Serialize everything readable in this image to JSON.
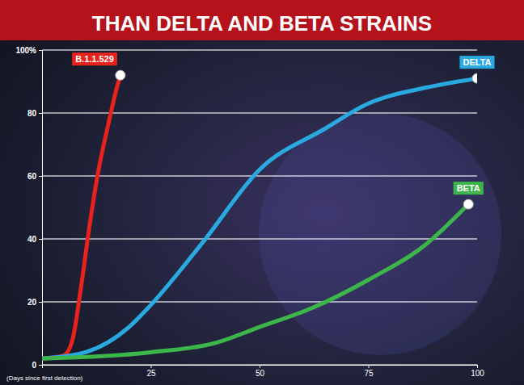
{
  "chart_data": {
    "type": "line",
    "title": "THAN DELTA AND BETA STRAINS",
    "x_label": "(Days since first detection)",
    "xlim": [
      0,
      100
    ],
    "xticks": [
      25,
      50,
      75,
      100
    ],
    "ylim": [
      0,
      100
    ],
    "yticks": [
      0,
      20,
      40,
      60,
      80,
      {
        "value": 100,
        "label": "100%"
      }
    ],
    "grid": true,
    "series": [
      {
        "name": "B.1.1.529",
        "color": "#e8231d",
        "x": [
          0,
          5,
          7,
          9,
          11,
          13,
          15,
          17,
          18
        ],
        "values": [
          2,
          3,
          8,
          25,
          45,
          62,
          75,
          87,
          92
        ]
      },
      {
        "name": "DELTA",
        "color": "#29a9e0",
        "x": [
          0,
          10,
          20,
          25,
          37,
          50,
          65,
          75,
          88,
          100
        ],
        "values": [
          2,
          4,
          12,
          19,
          39,
          62,
          75,
          83,
          88,
          91
        ]
      },
      {
        "name": "BETA",
        "color": "#3cb54a",
        "x": [
          0,
          25,
          40,
          50,
          62,
          75,
          88,
          98
        ],
        "values": [
          2,
          4,
          7,
          12,
          18,
          27,
          38,
          51
        ]
      }
    ]
  }
}
